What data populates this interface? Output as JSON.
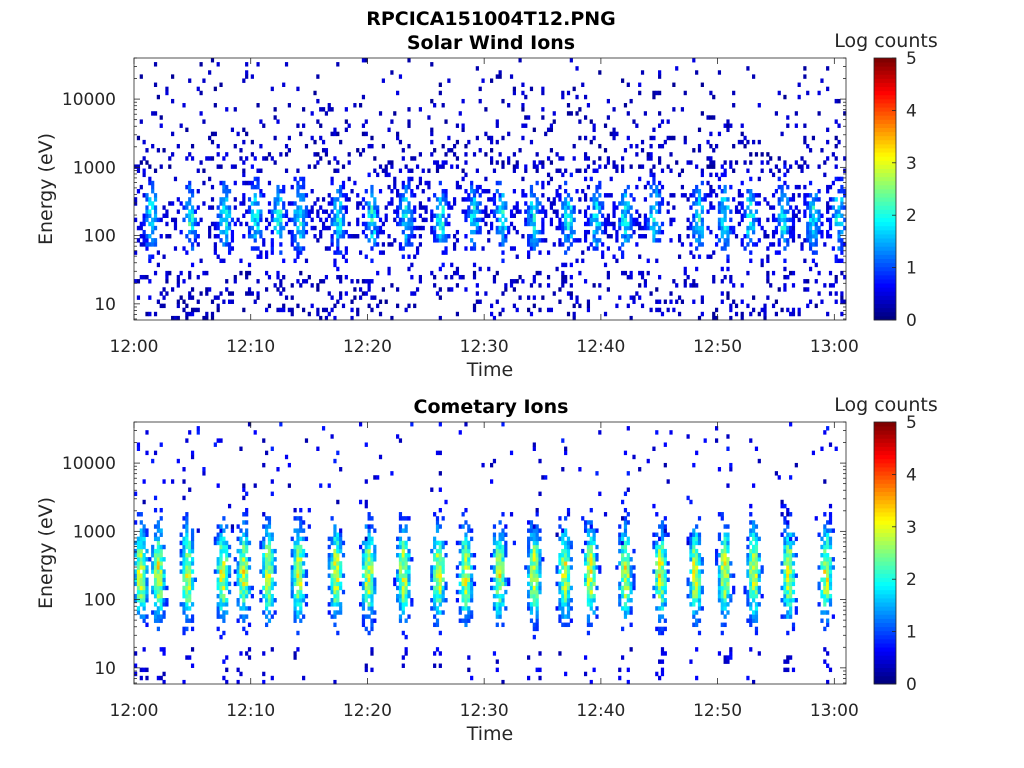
{
  "figure_title": "RPCICA151004T12.PNG",
  "colormap": "jet",
  "chart_data": [
    {
      "type": "heatmap",
      "title": "Solar Wind Ions",
      "xlabel": "Time",
      "ylabel": "Energy (eV)",
      "y_scale": "log",
      "y_range_eV": [
        5.8,
        40000
      ],
      "y_ticks": [
        10,
        100,
        1000,
        10000
      ],
      "y_tick_labels": [
        "10",
        "100",
        "1000",
        "10000"
      ],
      "x_range_min": [
        0,
        61
      ],
      "x_ticks_min": [
        0,
        10,
        20,
        30,
        40,
        50,
        60
      ],
      "x_tick_labels": [
        "12:00",
        "12:10",
        "12:20",
        "12:30",
        "12:40",
        "12:50",
        "13:00"
      ],
      "colorbar": {
        "label": "Log counts",
        "min": 0,
        "max": 5,
        "ticks": [
          0,
          1,
          2,
          3,
          4,
          5
        ],
        "tick_labels": [
          "0",
          "1",
          "2",
          "3",
          "4",
          "5"
        ]
      },
      "bursts_min": [
        1.5,
        4.8,
        7.8,
        10.4,
        12.4,
        14.2,
        17.5,
        20.4,
        23.3,
        26.3,
        29.1,
        31.5,
        34.3,
        37.2,
        39.6,
        42.1,
        44.6,
        48.4,
        50.6,
        52.8,
        55.6,
        58.2,
        60.4
      ],
      "core_log_counts_peak": 1.8,
      "core_energy_eV": [
        50,
        700
      ]
    },
    {
      "type": "heatmap",
      "title": "Cometary Ions",
      "xlabel": "Time",
      "ylabel": "Energy (eV)",
      "y_scale": "log",
      "y_range_eV": [
        5.8,
        40000
      ],
      "y_ticks": [
        10,
        100,
        1000,
        10000
      ],
      "y_tick_labels": [
        "10",
        "100",
        "1000",
        "10000"
      ],
      "x_range_min": [
        0,
        61
      ],
      "x_ticks_min": [
        0,
        10,
        20,
        30,
        40,
        50,
        60
      ],
      "x_tick_labels": [
        "12:00",
        "12:10",
        "12:20",
        "12:30",
        "12:40",
        "12:50",
        "13:00"
      ],
      "colorbar": {
        "label": "Log counts",
        "min": 0,
        "max": 5,
        "ticks": [
          0,
          1,
          2,
          3,
          4,
          5
        ],
        "tick_labels": [
          "0",
          "1",
          "2",
          "3",
          "4",
          "5"
        ]
      },
      "bursts_min": [
        0.6,
        2.1,
        4.6,
        7.6,
        9.4,
        11.5,
        14.1,
        17.3,
        20.1,
        23.1,
        26.1,
        28.4,
        31.3,
        34.3,
        36.9,
        39.1,
        42.1,
        45.1,
        48.1,
        50.6,
        53.1,
        56.1,
        59.3
      ],
      "core_log_counts_peak": 2.8,
      "core_energy_eV": [
        40,
        1500
      ]
    }
  ]
}
